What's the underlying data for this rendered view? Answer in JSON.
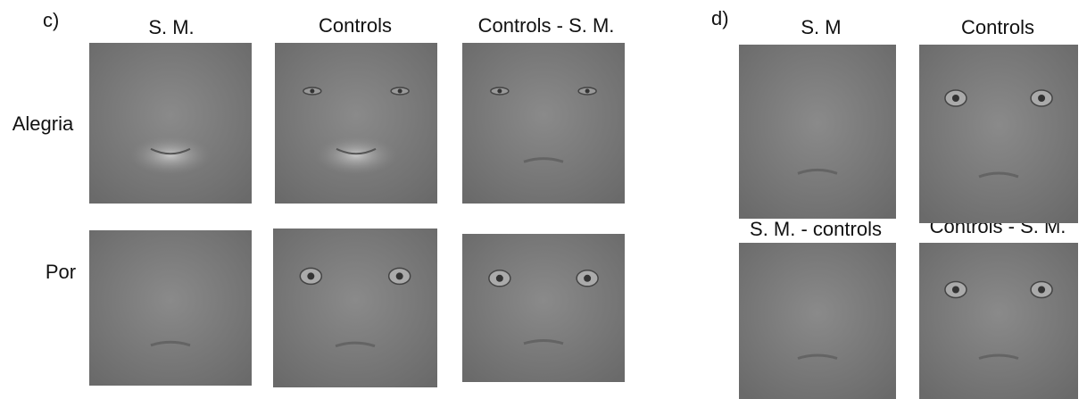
{
  "panel_c": {
    "label": "c)",
    "columns": [
      "S. M.",
      "Controls",
      "Controls - S. M."
    ],
    "rows": [
      "Alegria",
      "Por"
    ]
  },
  "panel_d": {
    "label": "d)",
    "titles": [
      "S. M",
      "Controls",
      "S. M. - controls",
      "Controls - S. M."
    ]
  }
}
